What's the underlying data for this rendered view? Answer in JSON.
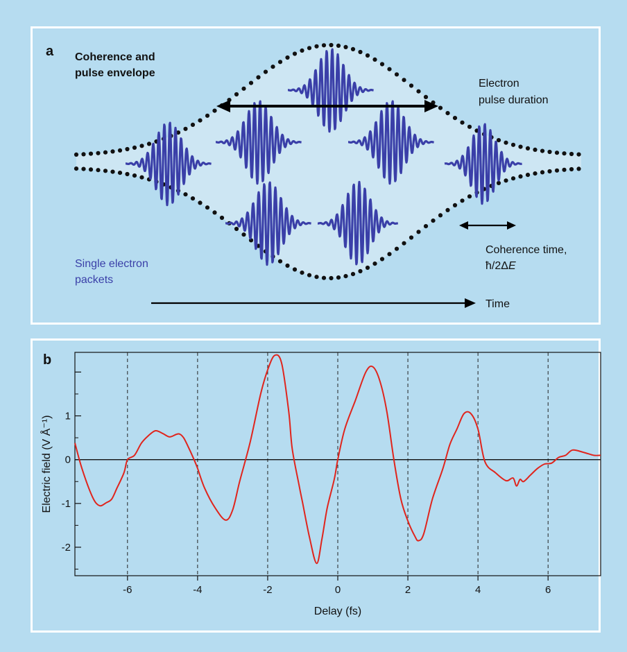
{
  "panel_a": {
    "label": "a",
    "title_line1": "Coherence and",
    "title_line2": "pulse envelope",
    "pulse_line1": "Electron",
    "pulse_line2": "pulse duration",
    "coherence_line1": "Coherence time,",
    "coherence_line2_prefix": "ħ/2Δ",
    "coherence_line2_italic": "E",
    "packets_line1": "Single electron",
    "packets_line2": "packets",
    "time_label": "Time",
    "colors": {
      "wave": "#3a3fa8",
      "packet_text": "#3a3fa8",
      "envelope_fill": "#cde6f3",
      "dots": "#111111"
    }
  },
  "panel_b": {
    "label": "b",
    "chart_data": {
      "type": "line",
      "xlabel": "Delay (fs)",
      "ylabel": "Electric field (V Å⁻¹)",
      "xlim": [
        -7.5,
        7.5
      ],
      "ylim": [
        -2.65,
        2.45
      ],
      "x_ticks": [
        -6,
        -4,
        -2,
        0,
        2,
        4,
        6
      ],
      "x_tick_labels": [
        "-6",
        "-4",
        "-2",
        "0",
        "2",
        "4",
        "6"
      ],
      "y_ticks": [
        -2,
        -1,
        0,
        1
      ],
      "y_tick_labels": [
        "-2",
        "-1",
        "0",
        "1"
      ],
      "vertical_dashed_gridlines_at": [
        -6,
        -4,
        -2,
        0,
        2,
        4,
        6
      ],
      "zero_line": true,
      "series": [
        {
          "color": "#e0241c",
          "x": [
            -7.5,
            -7.3,
            -7.0,
            -6.8,
            -6.6,
            -6.45,
            -6.3,
            -6.1,
            -6.0,
            -5.8,
            -5.6,
            -5.4,
            -5.2,
            -5.0,
            -4.8,
            -4.6,
            -4.5,
            -4.4,
            -4.3,
            -4.1,
            -4.0,
            -3.8,
            -3.5,
            -3.2,
            -3.0,
            -2.8,
            -2.5,
            -2.2,
            -2.0,
            -1.8,
            -1.6,
            -1.4,
            -1.3,
            -1.1,
            -1.0,
            -0.8,
            -0.6,
            -0.45,
            -0.3,
            -0.1,
            0.0,
            0.2,
            0.5,
            0.8,
            1.0,
            1.2,
            1.4,
            1.6,
            1.8,
            2.0,
            2.2,
            2.3,
            2.45,
            2.7,
            3.0,
            3.2,
            3.4,
            3.6,
            3.8,
            4.0,
            4.2,
            4.5,
            4.8,
            5.0,
            5.1,
            5.2,
            5.3,
            5.5,
            5.7,
            5.9,
            6.1,
            6.3,
            6.5,
            6.7,
            7.0,
            7.3,
            7.5
          ],
          "y": [
            0.38,
            -0.2,
            -0.85,
            -1.05,
            -0.98,
            -0.9,
            -0.65,
            -0.3,
            0.0,
            0.1,
            0.38,
            0.55,
            0.66,
            0.6,
            0.52,
            0.58,
            0.58,
            0.5,
            0.35,
            0.0,
            -0.2,
            -0.65,
            -1.1,
            -1.38,
            -1.15,
            -0.5,
            0.4,
            1.5,
            2.05,
            2.38,
            2.2,
            1.1,
            0.25,
            -0.6,
            -1.0,
            -1.8,
            -2.37,
            -1.8,
            -1.1,
            -0.45,
            0.0,
            0.7,
            1.35,
            2.0,
            2.12,
            1.8,
            1.1,
            0.0,
            -0.9,
            -1.4,
            -1.75,
            -1.85,
            -1.7,
            -0.9,
            -0.2,
            0.35,
            0.7,
            1.05,
            1.05,
            0.7,
            -0.05,
            -0.3,
            -0.48,
            -0.42,
            -0.6,
            -0.45,
            -0.5,
            -0.35,
            -0.2,
            -0.1,
            -0.08,
            0.05,
            0.1,
            0.22,
            0.17,
            0.1,
            0.1
          ]
        }
      ]
    }
  }
}
